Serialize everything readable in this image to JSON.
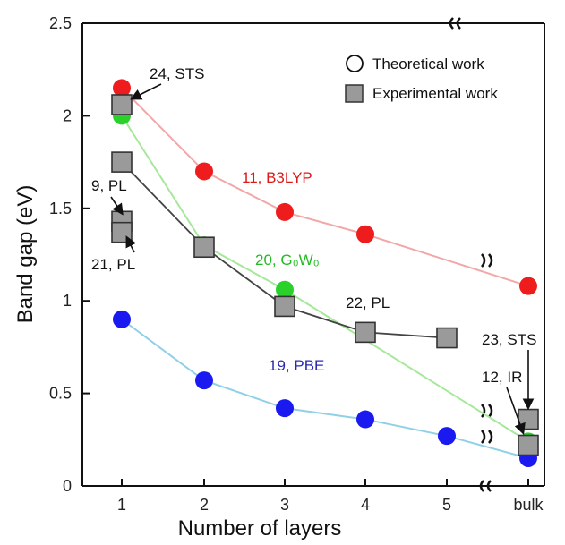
{
  "chart_data": {
    "type": "line",
    "xlabel": "Number of layers",
    "ylabel": "Band gap (eV)",
    "categories": [
      "1",
      "2",
      "3",
      "4",
      "5",
      "bulk"
    ],
    "ylim": [
      0,
      2.5
    ],
    "yticks": [
      "0",
      "0.5",
      "1",
      "1.5",
      "2",
      "2.5"
    ],
    "grid": false,
    "legend": {
      "placement": "top-right",
      "entries": [
        {
          "label": "Theoretical work",
          "marker": "circle"
        },
        {
          "label": "Experimental work",
          "marker": "square"
        }
      ]
    },
    "series": [
      {
        "name": "11, B3LYP",
        "kind": "theoretical",
        "color": "#ee1c1c",
        "line_color": "#f2a8a8",
        "points": [
          [
            1,
            2.15
          ],
          [
            2,
            1.7
          ],
          [
            3,
            1.48
          ],
          [
            4,
            1.36
          ],
          [
            "bulk",
            1.08
          ]
        ]
      },
      {
        "name": "20, G0W0",
        "kind": "theoretical",
        "color": "#2bd12b",
        "line_color": "#a6e89a",
        "points": [
          [
            1,
            2.0
          ],
          [
            2,
            1.3
          ],
          [
            3,
            1.06
          ],
          [
            "bulk",
            0.24
          ]
        ]
      },
      {
        "name": "19, PBE",
        "kind": "theoretical",
        "color": "#1a1af0",
        "line_color": "#8fd0e6",
        "points": [
          [
            1,
            0.9
          ],
          [
            2,
            0.57
          ],
          [
            3,
            0.42
          ],
          [
            4,
            0.36
          ],
          [
            5,
            0.27
          ],
          [
            "bulk",
            0.15
          ]
        ]
      },
      {
        "name": "",
        "kind": "experimental",
        "color": "#9a9a9a",
        "line_color": "#444444",
        "points": [
          [
            1,
            1.75
          ],
          [
            2,
            1.29
          ],
          [
            3,
            0.97
          ],
          [
            4,
            0.83
          ],
          [
            5,
            0.8
          ]
        ]
      },
      {
        "name": "",
        "kind": "experimental",
        "color": "#9a9a9a",
        "line_color": "none",
        "points": [
          [
            1,
            2.06
          ],
          [
            1,
            1.43
          ],
          [
            1,
            1.37
          ],
          [
            "bulk",
            0.36
          ],
          [
            "bulk",
            0.22
          ]
        ]
      }
    ],
    "annotations": [
      {
        "text": "24, STS",
        "color": "#111111",
        "at": [
          1,
          2.06
        ]
      },
      {
        "text": "9, PL",
        "color": "#111111",
        "at": [
          1,
          1.43
        ]
      },
      {
        "text": "21, PL",
        "color": "#111111",
        "at": [
          1,
          1.37
        ]
      },
      {
        "text": "11, B3LYP",
        "color": "#dd1a1a"
      },
      {
        "text": "20, G₀W₀",
        "color": "#22bb22"
      },
      {
        "text": "22, PL",
        "color": "#111111"
      },
      {
        "text": "19, PBE",
        "color": "#2a2ab0"
      },
      {
        "text": "23, STS",
        "color": "#111111",
        "at": [
          "bulk",
          0.36
        ]
      },
      {
        "text": "12, IR",
        "color": "#111111",
        "at": [
          "bulk",
          0.22
        ]
      }
    ]
  }
}
